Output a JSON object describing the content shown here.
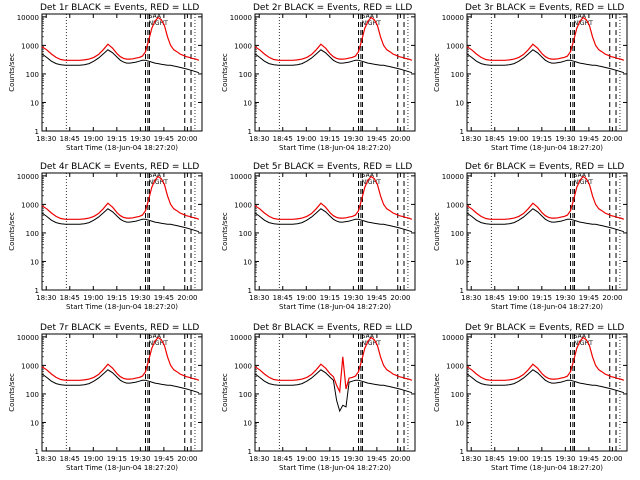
{
  "figure": {
    "ylabel": "Counts/sec",
    "xlabel": "Start Time (18-Jun-04 18:27:20)",
    "x_tick_labels": [
      "18:30",
      "18:45",
      "19:00",
      "19:15",
      "19:30",
      "19:45",
      "20:00"
    ],
    "y_tick_labels": [
      "1",
      "10",
      "100",
      "1000",
      "10000"
    ],
    "colors": {
      "events": "#000000",
      "lld": "#ee0000",
      "axes": "#000000"
    }
  },
  "chart_data": [
    {
      "type": "line",
      "title": "Det 1r BLACK = Events, RED = LLD",
      "flare_labels": [
        "SAA",
        "NIGHT"
      ],
      "dip": false
    },
    {
      "type": "line",
      "title": "Det 2r BLACK = Events, RED = LLD",
      "flare_labels": [
        "SAA",
        "NIGHT"
      ],
      "dip": false
    },
    {
      "type": "line",
      "title": "Det 3r BLACK = Events, RED = LLD",
      "flare_labels": [
        "SAA",
        "NIGHT"
      ],
      "dip": false
    },
    {
      "type": "line",
      "title": "Det 4r BLACK = Events, RED = LLD",
      "flare_labels": [
        "SAA",
        "NIGHT"
      ],
      "dip": false
    },
    {
      "type": "line",
      "title": "Det 5r BLACK = Events, RED = LLD",
      "flare_labels": [
        "SAA",
        "NIGHT"
      ],
      "dip": false
    },
    {
      "type": "line",
      "title": "Det 6r BLACK = Events, RED = LLD",
      "flare_labels": [
        "SAA",
        "NIGHT"
      ],
      "dip": false
    },
    {
      "type": "line",
      "title": "Det 7r BLACK = Events, RED = LLD",
      "flare_labels": [
        "SAA",
        "NIGHT"
      ],
      "dip": false
    },
    {
      "type": "line",
      "title": "Det 8r BLACK = Events, RED = LLD",
      "flare_labels": [
        "SAA",
        "NIGHT"
      ],
      "dip": true
    },
    {
      "type": "line",
      "title": "Det 9r BLACK = Events, RED = LLD",
      "flare_labels": [
        "SAA",
        "NIGHT"
      ],
      "dip": false
    }
  ],
  "series_shape": {
    "x_minutes": [
      0,
      3,
      6,
      9,
      12,
      15,
      18,
      21,
      24,
      27,
      30,
      33,
      36,
      39,
      42,
      45,
      48,
      50,
      52,
      54,
      56,
      58,
      60,
      62,
      64,
      66,
      68,
      70,
      72,
      74,
      76,
      78,
      80,
      82,
      84,
      86,
      88,
      90,
      92,
      94,
      96,
      98,
      100
    ],
    "lld": [
      900,
      700,
      500,
      380,
      320,
      300,
      300,
      300,
      300,
      310,
      330,
      380,
      480,
      700,
      1100,
      800,
      500,
      400,
      350,
      330,
      330,
      340,
      360,
      380,
      420,
      600,
      1500,
      4000,
      7000,
      9500,
      8000,
      5000,
      2000,
      1000,
      700,
      600,
      500,
      450,
      400,
      380,
      350,
      330,
      300
    ],
    "events": [
      500,
      380,
      280,
      230,
      210,
      200,
      200,
      200,
      200,
      210,
      230,
      280,
      360,
      500,
      700,
      550,
      380,
      300,
      260,
      240,
      240,
      250,
      260,
      280,
      300,
      300,
      280,
      260,
      240,
      230,
      220,
      210,
      200,
      200,
      190,
      180,
      170,
      160,
      150,
      140,
      130,
      120,
      110
    ]
  }
}
